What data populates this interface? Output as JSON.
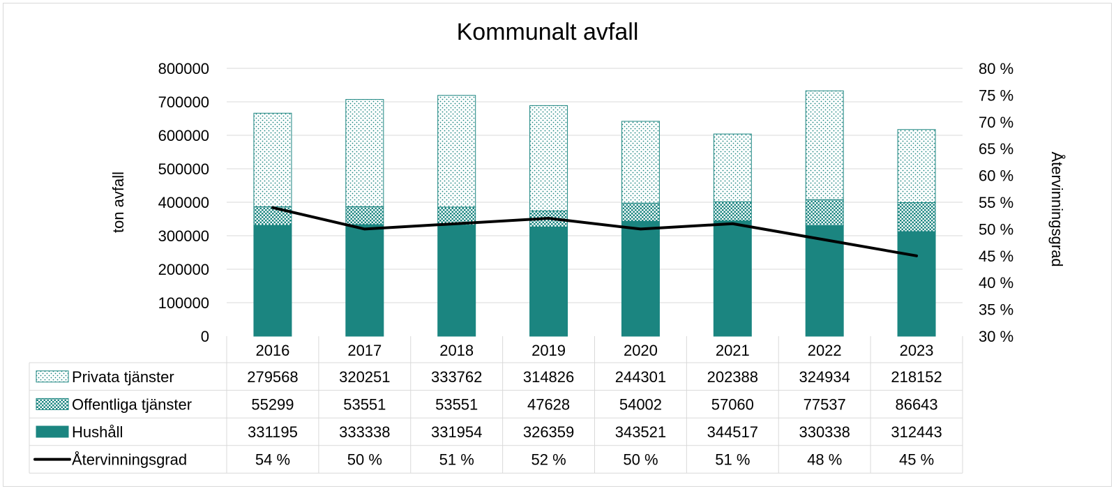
{
  "chart_data": {
    "type": "bar",
    "title": "Kommunalt avfall",
    "ylabel": "ton avfall",
    "y2label": "Återvinningsgrad",
    "categories": [
      "2016",
      "2017",
      "2018",
      "2019",
      "2020",
      "2021",
      "2022",
      "2023"
    ],
    "ylim": [
      0,
      800000
    ],
    "yticks": [
      "0",
      "100000",
      "200000",
      "300000",
      "400000",
      "500000",
      "600000",
      "700000",
      "800000"
    ],
    "y2lim": [
      30,
      80
    ],
    "y2ticks": [
      "30 %",
      "35 %",
      "40 %",
      "45 %",
      "50 %",
      "55 %",
      "60 %",
      "65 %",
      "70 %",
      "75 %",
      "80 %"
    ],
    "grid": true,
    "stacked": true,
    "series": [
      {
        "name": "Hushåll",
        "type": "bar",
        "axis": "left",
        "color": "#1b8580",
        "values": [
          331195,
          333338,
          331954,
          326359,
          343521,
          344517,
          330338,
          312443
        ]
      },
      {
        "name": "Offentliga tjänster",
        "type": "bar",
        "axis": "left",
        "color": "#1b8580",
        "pattern": "checker",
        "values": [
          55299,
          53551,
          53551,
          47628,
          54002,
          57060,
          77537,
          86643
        ]
      },
      {
        "name": "Privata tjänster",
        "type": "bar",
        "axis": "left",
        "color": "#1b8580",
        "pattern": "dots",
        "values": [
          279568,
          320251,
          333762,
          314826,
          244301,
          202388,
          324934,
          218152
        ]
      },
      {
        "name": "Återvinningsgrad",
        "type": "line",
        "axis": "right",
        "color": "#000000",
        "values": [
          54,
          50,
          51,
          52,
          50,
          51,
          48,
          45
        ]
      }
    ],
    "table": {
      "rows": [
        {
          "name": "Privata tjänster",
          "cells": [
            "279568",
            "320251",
            "333762",
            "314826",
            "244301",
            "202388",
            "324934",
            "218152"
          ]
        },
        {
          "name": "Offentliga tjänster",
          "cells": [
            "55299",
            "53551",
            "53551",
            "47628",
            "54002",
            "57060",
            "77537",
            "86643"
          ]
        },
        {
          "name": "Hushåll",
          "cells": [
            "331195",
            "333338",
            "331954",
            "326359",
            "343521",
            "344517",
            "330338",
            "312443"
          ]
        },
        {
          "name": "Återvinningsgrad",
          "cells": [
            "54 %",
            "50 %",
            "51 %",
            "52 %",
            "50 %",
            "51 %",
            "48 %",
            "45 %"
          ]
        }
      ]
    }
  }
}
